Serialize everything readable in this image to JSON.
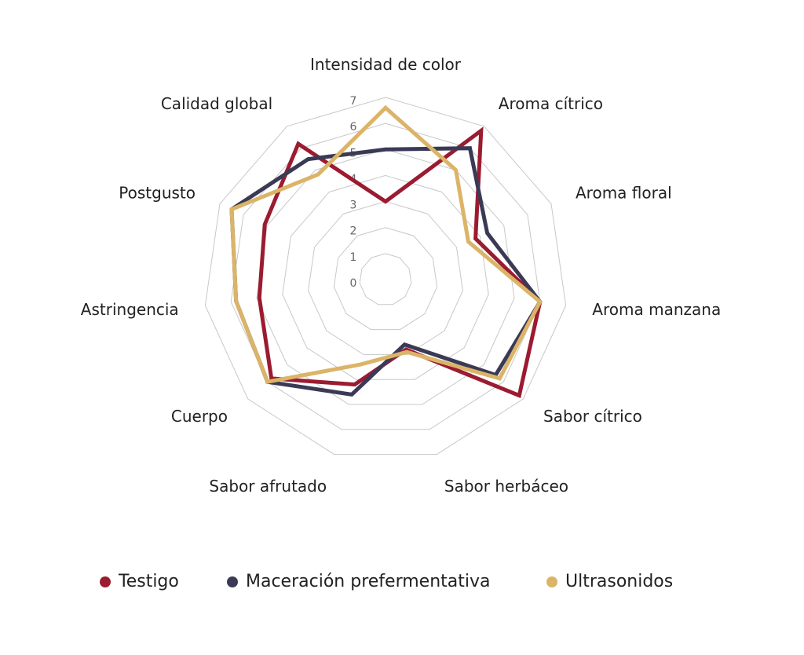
{
  "chart_data": {
    "type": "radar",
    "categories": [
      "Intensidad de color",
      "Aroma cítrico",
      "Aroma floral",
      "Aroma manzana",
      "Sabor cítrico",
      "Sabor herbáceo",
      "Sabor afrutado",
      "Cuerpo",
      "Astringencia",
      "Postgusto",
      "Calidad global"
    ],
    "ticks": [
      "0",
      "1",
      "2",
      "3",
      "4",
      "5",
      "6",
      "7"
    ],
    "rlim": [
      0,
      7
    ],
    "grid": true,
    "legend_position": "bottom",
    "series": [
      {
        "name": "Testigo",
        "color": "#9b1b30",
        "values": [
          3.0,
          6.8,
          3.8,
          6.0,
          6.8,
          2.8,
          4.2,
          5.8,
          4.9,
          5.1,
          6.2
        ]
      },
      {
        "name": "Maceración prefermentativa",
        "color": "#3a3a56",
        "values": [
          5.0,
          6.0,
          4.3,
          6.0,
          5.6,
          2.6,
          4.6,
          6.0,
          5.8,
          6.5,
          5.5
        ]
      },
      {
        "name": "Ultrasonidos",
        "color": "#dbb468",
        "values": [
          6.6,
          5.0,
          3.5,
          6.0,
          5.8,
          2.9,
          3.4,
          6.0,
          5.8,
          6.5,
          4.8
        ]
      }
    ]
  }
}
